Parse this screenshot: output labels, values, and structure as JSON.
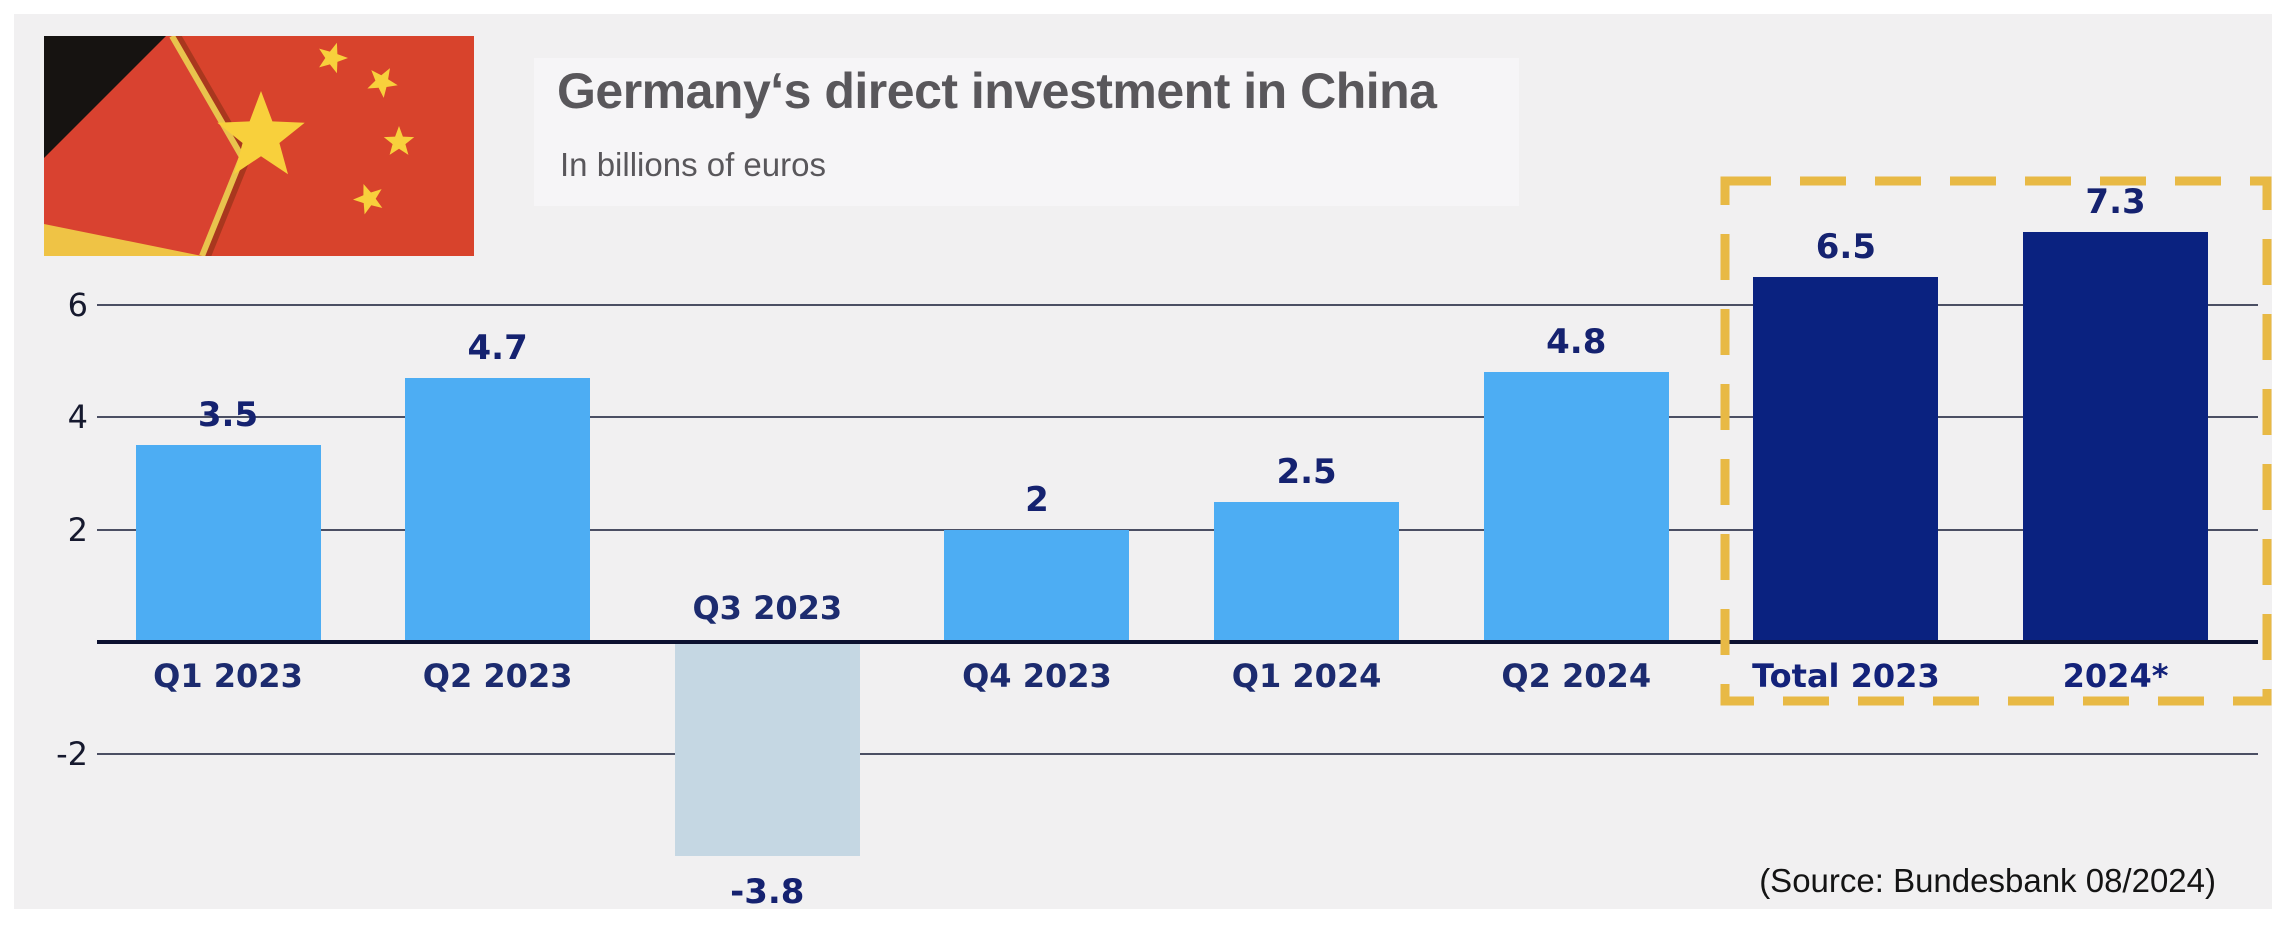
{
  "header": {
    "title": "Germany‘s direct investment in China",
    "subtitle": "In billions of euros",
    "flag": "germany-china-flags"
  },
  "source_note": "(Source: Bundesbank 08/2024)",
  "colors": {
    "background": "#f1f0f1",
    "title_panel": "#f6f5f7",
    "quarter_bar": "#4dadf3",
    "negative_bar": "#c5d7e3",
    "total_bar": "#0a2280",
    "highlight_dash": "#e8b945",
    "gridline": "#4b4f63",
    "axis_line": "#0c1130",
    "label_navy": "#152270"
  },
  "chart_data": {
    "type": "bar",
    "title": "Germany‘s direct investment in China",
    "subtitle": "In billions of euros",
    "xlabel": "",
    "ylabel": "In billions of euros",
    "ylim": [
      -4.5,
      7.5
    ],
    "y_ticks": [
      6,
      4,
      2,
      -2
    ],
    "grid": true,
    "legend": "none",
    "categories": [
      "Q1 2023",
      "Q2 2023",
      "Q3 2023",
      "Q4 2023",
      "Q1 2024",
      "Q2 2024",
      "Total 2023",
      "2024*"
    ],
    "values": [
      3.5,
      4.7,
      -3.8,
      2,
      2.5,
      4.8,
      6.5,
      7.3
    ],
    "bars": [
      {
        "category": "Q1 2023",
        "value": 3.5,
        "display": "3.5",
        "style": "quarter"
      },
      {
        "category": "Q2 2023",
        "value": 4.7,
        "display": "4.7",
        "style": "quarter"
      },
      {
        "category": "Q3 2023",
        "value": -3.8,
        "display": "-3.8",
        "style": "negative"
      },
      {
        "category": "Q4 2023",
        "value": 2,
        "display": "2",
        "style": "quarter"
      },
      {
        "category": "Q1 2024",
        "value": 2.5,
        "display": "2.5",
        "style": "quarter"
      },
      {
        "category": "Q2 2024",
        "value": 4.8,
        "display": "4.8",
        "style": "quarter"
      },
      {
        "category": "Total 2023",
        "value": 6.5,
        "display": "6.5",
        "style": "total"
      },
      {
        "category": "2024*",
        "value": 7.3,
        "display": "7.3",
        "style": "total"
      }
    ],
    "highlight_group": {
      "categories": [
        "Total 2023",
        "2024*"
      ],
      "style": "dashed-gold-box"
    }
  }
}
